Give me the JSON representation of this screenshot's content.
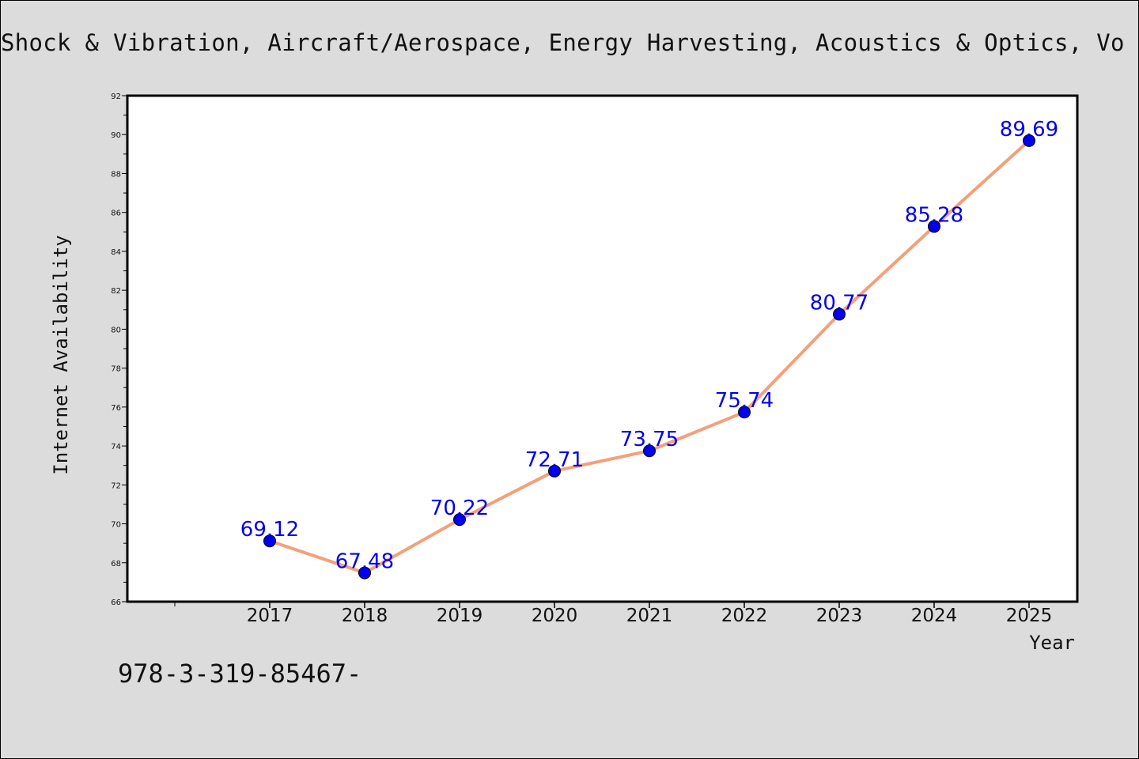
{
  "chart_data": {
    "type": "line",
    "title": "Shock & Vibration, Aircraft/Aerospace, Energy Harvesting, Acoustics & Optics, Vo",
    "xlabel": "Year",
    "ylabel": "Internet Availability",
    "categories": [
      "2017",
      "2018",
      "2019",
      "2020",
      "2021",
      "2022",
      "2023",
      "2024",
      "2025"
    ],
    "series": [
      {
        "values": [
          69.12,
          67.48,
          70.22,
          72.71,
          73.75,
          75.74,
          80.77,
          85.28,
          89.69
        ],
        "data_labels": [
          "69.12",
          "67.48",
          "70.22",
          "72.71",
          "73.75",
          "75.74",
          "80.77",
          "85.28",
          "89.69"
        ]
      }
    ],
    "ylim": [
      66,
      92
    ],
    "yticks": [
      "66",
      "68",
      "70",
      "72",
      "74",
      "76",
      "78",
      "80",
      "82",
      "84",
      "86",
      "88",
      "90",
      "92"
    ],
    "grid": false,
    "line_color": "#f4a07a",
    "marker_color": "#0000ee",
    "label_color": "#0000ee"
  },
  "footer": {
    "text": "978-3-319-85467-"
  }
}
